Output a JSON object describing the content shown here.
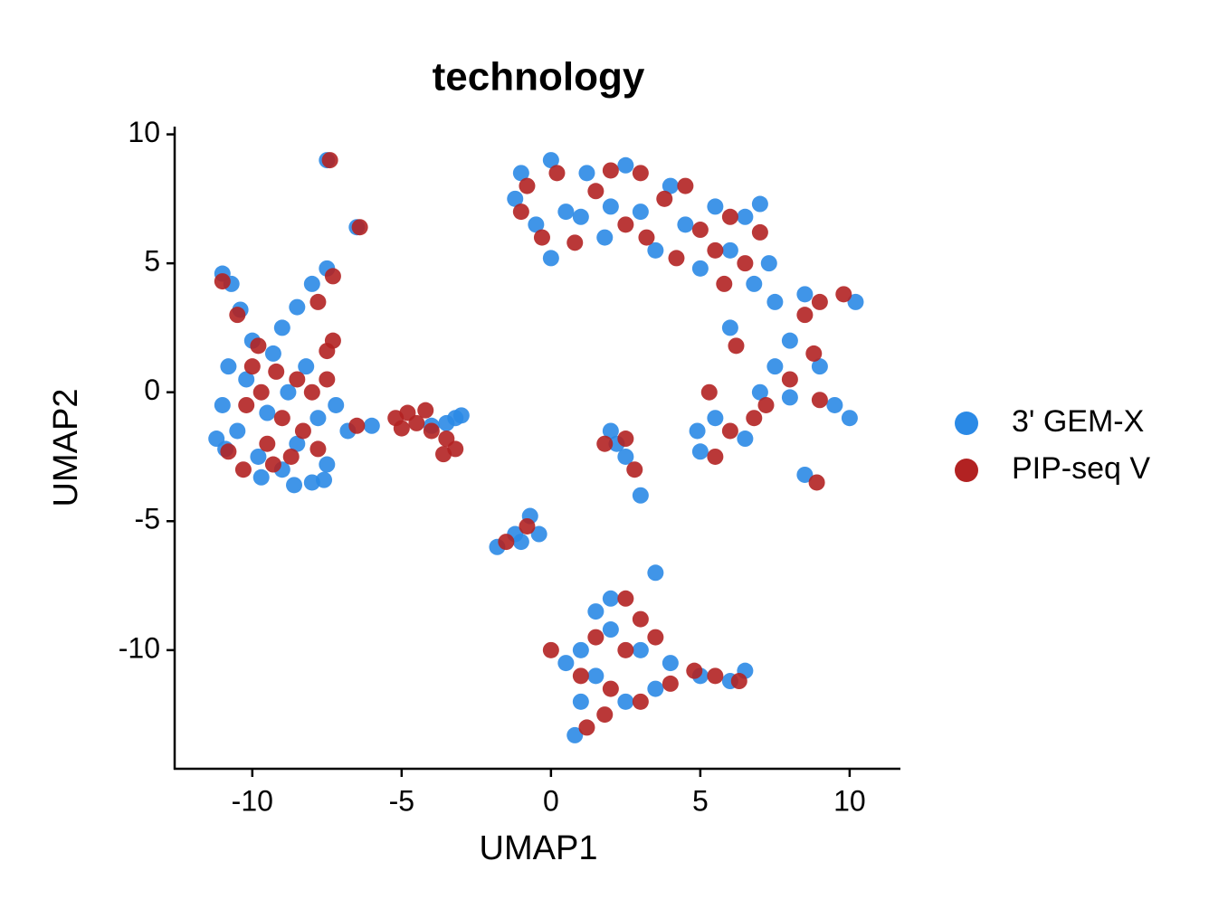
{
  "chart_data": {
    "type": "scatter",
    "title": "technology",
    "x_label": "UMAP1",
    "y_label": "UMAP2",
    "xlim": [
      -12.6,
      11.7
    ],
    "ylim": [
      -14.6,
      10.3
    ],
    "xticks": [
      -10,
      -5,
      0,
      5,
      10
    ],
    "yticks": [
      -10,
      -5,
      0,
      5,
      10
    ],
    "legend": "right",
    "series": [
      {
        "name": "3' GEM-X",
        "color": "#2b8ae6",
        "x": [
          -11,
          -10.8,
          -10.5,
          -10.2,
          -10,
          -9.8,
          -9.5,
          -9.3,
          -9,
          -8.8,
          -8.5,
          -8.2,
          -8,
          -7.8,
          -7.5,
          -7.2,
          -9.7,
          -8.6,
          -10.9,
          -11.2,
          -11,
          -10.7,
          -10.4,
          -7.6,
          -6.8,
          -6,
          -9,
          -8.5,
          -8,
          -7.5,
          -3.2,
          -3.5,
          -3,
          -4,
          -1.2,
          -1,
          -0.5,
          0,
          0.5,
          1,
          1.2,
          1.8,
          2.5,
          3,
          3.5,
          4,
          4.5,
          5,
          5.5,
          6,
          6.5,
          7,
          7.3,
          6.8,
          7.5,
          8,
          8.5,
          9,
          9.5,
          10,
          10.2,
          8,
          7.5,
          6,
          5.5,
          5,
          6.5,
          7,
          4.9,
          0,
          2,
          2,
          2.5,
          3,
          2.2,
          -1.8,
          -1.2,
          -0.7,
          -0.4,
          -1,
          0.8,
          1,
          1.5,
          1,
          2,
          2.5,
          3,
          3.5,
          4,
          5,
          6,
          6.5,
          3.5,
          2,
          1.5,
          0.5,
          -7.5,
          -6.5,
          8.5
        ],
        "y": [
          -0.5,
          1,
          -1.5,
          0.5,
          2,
          -2.5,
          -0.8,
          1.5,
          -3,
          0,
          -2,
          1,
          -3.5,
          -1,
          -2.8,
          -0.5,
          -3.3,
          -3.6,
          -2.2,
          -1.8,
          4.6,
          4.2,
          3.2,
          -3.4,
          -1.5,
          -1.3,
          2.5,
          3.3,
          4.2,
          4.8,
          -1,
          -1.2,
          -0.9,
          -1.3,
          7.5,
          8.5,
          6.5,
          9,
          7,
          6.8,
          8.5,
          6,
          8.8,
          7,
          5.5,
          8,
          6.5,
          4.8,
          7.2,
          5.5,
          6.8,
          7.3,
          5,
          4.2,
          3.5,
          2,
          3.8,
          1,
          -0.5,
          -1,
          3.5,
          -0.2,
          1,
          2.5,
          -1,
          -2.3,
          -1.8,
          0,
          -1.5,
          5.2,
          7.2,
          -1.5,
          -2.5,
          -4,
          -2,
          -6,
          -5.5,
          -4.8,
          -5.5,
          -5.8,
          -13.3,
          -12,
          -11,
          -10,
          -9.2,
          -12,
          -10,
          -11.5,
          -10.5,
          -11,
          -11.2,
          -10.8,
          -7,
          -8,
          -8.5,
          -10.5,
          9,
          6.4,
          -3.2
        ]
      },
      {
        "name": "PIP-seq V",
        "color": "#b22222",
        "x": [
          -11,
          -10.5,
          -10.2,
          -10,
          -9.7,
          -9.5,
          -9.2,
          -9,
          -8.7,
          -8.5,
          -8.3,
          -8,
          -7.8,
          -7.5,
          -10.3,
          -9.8,
          -10.8,
          -7.3,
          -7.5,
          -7.8,
          -7.3,
          -6.5,
          -9.3,
          -5.2,
          -4.8,
          -4.5,
          -4.2,
          -4,
          -5,
          -3.5,
          -3.2,
          -3.6,
          -1,
          -0.8,
          -0.3,
          0.2,
          0.8,
          1.5,
          2,
          2.5,
          3,
          3.2,
          3.8,
          4.2,
          4.5,
          5,
          5.5,
          6,
          6.5,
          7,
          5.8,
          8.5,
          9,
          9.8,
          8.8,
          9,
          8,
          6,
          5.5,
          6.8,
          7.2,
          5.3,
          6.2,
          1.8,
          2.8,
          2.5,
          -1.5,
          -0.8,
          0,
          1,
          1.2,
          1.5,
          2,
          2.5,
          3,
          3,
          3.5,
          4,
          4.8,
          5.5,
          6.3,
          2.5,
          1.8,
          -7.4,
          -6.4,
          8.9
        ],
        "y": [
          4.3,
          3,
          -0.5,
          1,
          0,
          -2,
          0.8,
          -1,
          -2.5,
          0.5,
          -1.5,
          0,
          -2.2,
          0.5,
          -3,
          1.8,
          -2.3,
          2,
          1.6,
          3.5,
          4.5,
          -1.3,
          -2.8,
          -1,
          -0.8,
          -1.2,
          -0.7,
          -1.5,
          -1.4,
          -1.8,
          -2.2,
          -2.4,
          7,
          8,
          6,
          8.5,
          5.8,
          7.8,
          8.6,
          6.5,
          8.5,
          6,
          7.5,
          5.2,
          8,
          6.3,
          5.5,
          6.8,
          5,
          6.2,
          4.2,
          3,
          3.5,
          3.8,
          1.5,
          -0.3,
          0.5,
          -1.5,
          -2.5,
          -1,
          -0.5,
          0,
          1.8,
          -2,
          -3,
          -1.8,
          -5.8,
          -5.2,
          -10,
          -11,
          -13,
          -9.5,
          -11.5,
          -10,
          -8.8,
          -12,
          -9.5,
          -11.3,
          -10.8,
          -11,
          -11.2,
          -8,
          -12.5,
          9,
          6.4,
          -3.5
        ]
      }
    ]
  }
}
